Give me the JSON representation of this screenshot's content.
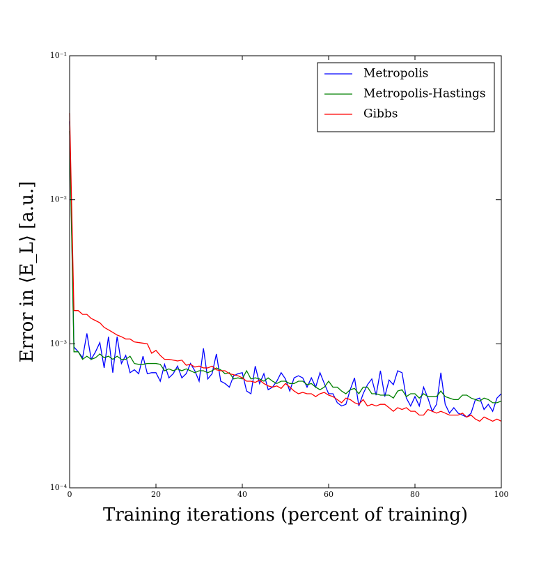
{
  "chart_data": {
    "type": "line",
    "x_label": "Training iterations (percent of training)",
    "y_label": "Error in ⟨E_L⟩ [a.u.]",
    "x": [
      0,
      1,
      2,
      3,
      4,
      5,
      6,
      7,
      8,
      9,
      10,
      11,
      12,
      13,
      14,
      15,
      16,
      17,
      18,
      19,
      20,
      21,
      22,
      23,
      24,
      25,
      26,
      27,
      28,
      29,
      30,
      31,
      32,
      33,
      34,
      35,
      36,
      37,
      38,
      39,
      40,
      41,
      42,
      43,
      44,
      45,
      46,
      47,
      48,
      49,
      50,
      51,
      52,
      53,
      54,
      55,
      56,
      57,
      58,
      59,
      60,
      61,
      62,
      63,
      64,
      65,
      66,
      67,
      68,
      69,
      70,
      71,
      72,
      73,
      74,
      75,
      76,
      77,
      78,
      79,
      80,
      81,
      82,
      83,
      84,
      85,
      86,
      87,
      88,
      89,
      90,
      91,
      92,
      93,
      94,
      95,
      96,
      97,
      98,
      99,
      100
    ],
    "series": [
      {
        "name": "Metropolis",
        "color": "#0000ff",
        "values": [
          0.035,
          0.00095,
          0.00088,
          0.0008,
          0.00118,
          0.00078,
          0.00088,
          0.00102,
          0.00068,
          0.00112,
          0.00063,
          0.00112,
          0.00073,
          0.00083,
          0.00063,
          0.00066,
          0.00062,
          0.00082,
          0.00062,
          0.00063,
          0.00063,
          0.00055,
          0.00072,
          0.00058,
          0.00062,
          0.0007,
          0.00058,
          0.00062,
          0.00073,
          0.00065,
          0.00055,
          0.00093,
          0.00057,
          0.00062,
          0.00085,
          0.00055,
          0.00053,
          0.0005,
          0.0006,
          0.00062,
          0.00063,
          0.00047,
          0.00045,
          0.0007,
          0.00053,
          0.00062,
          0.00048,
          0.0005,
          0.00055,
          0.00063,
          0.00057,
          0.00047,
          0.00058,
          0.0006,
          0.00058,
          0.0005,
          0.00058,
          0.0005,
          0.00063,
          0.00053,
          0.00045,
          0.00045,
          0.00039,
          0.00037,
          0.00038,
          0.00048,
          0.00058,
          0.00037,
          0.00045,
          0.00052,
          0.00057,
          0.00044,
          0.00065,
          0.00043,
          0.00056,
          0.00052,
          0.00065,
          0.00063,
          0.00042,
          0.00037,
          0.00043,
          0.00037,
          0.0005,
          0.00042,
          0.00034,
          0.00038,
          0.00063,
          0.00038,
          0.00033,
          0.00036,
          0.00033,
          0.00032,
          0.00031,
          0.00033,
          0.00041,
          0.00042,
          0.00035,
          0.00038,
          0.00034,
          0.00042,
          0.00045
        ]
      },
      {
        "name": "Metropolis-Hastings",
        "color": "#008000",
        "values": [
          0.03,
          0.00088,
          0.00088,
          0.00078,
          0.00082,
          0.00078,
          0.0008,
          0.00085,
          0.0008,
          0.00082,
          0.00078,
          0.00082,
          0.00078,
          0.00078,
          0.00082,
          0.00073,
          0.00072,
          0.00072,
          0.00073,
          0.00073,
          0.00073,
          0.00072,
          0.00065,
          0.00067,
          0.00065,
          0.00067,
          0.00065,
          0.00067,
          0.00065,
          0.00063,
          0.00065,
          0.00065,
          0.00063,
          0.00065,
          0.00068,
          0.00066,
          0.00062,
          0.00063,
          0.00057,
          0.00058,
          0.00057,
          0.00065,
          0.00057,
          0.00058,
          0.00057,
          0.00055,
          0.00058,
          0.00055,
          0.00053,
          0.00055,
          0.00055,
          0.00053,
          0.00053,
          0.00055,
          0.00055,
          0.00052,
          0.00053,
          0.0005,
          0.00048,
          0.0005,
          0.00055,
          0.0005,
          0.0005,
          0.00047,
          0.00045,
          0.00048,
          0.00049,
          0.00045,
          0.0005,
          0.0005,
          0.00045,
          0.00045,
          0.00044,
          0.00044,
          0.00044,
          0.00042,
          0.00047,
          0.00048,
          0.00043,
          0.00045,
          0.00045,
          0.00042,
          0.00045,
          0.00043,
          0.00043,
          0.00043,
          0.00047,
          0.00043,
          0.00042,
          0.00041,
          0.00041,
          0.00044,
          0.00044,
          0.00042,
          0.00041,
          0.0004,
          0.00042,
          0.00041,
          0.00039,
          0.00039,
          0.0004
        ]
      },
      {
        "name": "Gibbs",
        "color": "#ff0000",
        "values": [
          0.04,
          0.0017,
          0.0017,
          0.0016,
          0.0016,
          0.0015,
          0.00145,
          0.0014,
          0.0013,
          0.00125,
          0.0012,
          0.00115,
          0.00112,
          0.00108,
          0.00108,
          0.00103,
          0.00102,
          0.00101,
          0.001,
          0.00086,
          0.0009,
          0.00083,
          0.00078,
          0.00078,
          0.00077,
          0.00076,
          0.00077,
          0.00071,
          0.00072,
          0.00069,
          0.0007,
          0.00068,
          0.00068,
          0.0007,
          0.00066,
          0.00065,
          0.00065,
          0.00062,
          0.00061,
          0.0006,
          0.00058,
          0.00055,
          0.00055,
          0.00054,
          0.00056,
          0.00053,
          0.00051,
          0.0005,
          0.00051,
          0.00049,
          0.00053,
          0.0005,
          0.00047,
          0.00045,
          0.00046,
          0.00045,
          0.00045,
          0.00043,
          0.00045,
          0.00046,
          0.00044,
          0.00043,
          0.00041,
          0.00039,
          0.00042,
          0.00041,
          0.00039,
          0.00038,
          0.00041,
          0.00037,
          0.00038,
          0.00037,
          0.00038,
          0.00038,
          0.00036,
          0.00034,
          0.00036,
          0.00035,
          0.00036,
          0.00034,
          0.00034,
          0.00032,
          0.00032,
          0.00035,
          0.00034,
          0.00033,
          0.00034,
          0.00033,
          0.00032,
          0.00032,
          0.00032,
          0.00033,
          0.00031,
          0.00032,
          0.0003,
          0.00029,
          0.00031,
          0.0003,
          0.00029,
          0.0003,
          0.00029
        ]
      }
    ],
    "xlim": [
      0,
      100
    ],
    "xticks": [
      0,
      20,
      40,
      60,
      80,
      100
    ],
    "ylim": [
      0.0001,
      0.1
    ],
    "log_y": true,
    "yticks": [
      {
        "value": 0.0001,
        "label": "10⁻⁴"
      },
      {
        "value": 0.001,
        "label": "10⁻³"
      },
      {
        "value": 0.01,
        "label": "10⁻²"
      },
      {
        "value": 0.1,
        "label": "10⁻¹"
      }
    ],
    "legend": "upper right"
  }
}
